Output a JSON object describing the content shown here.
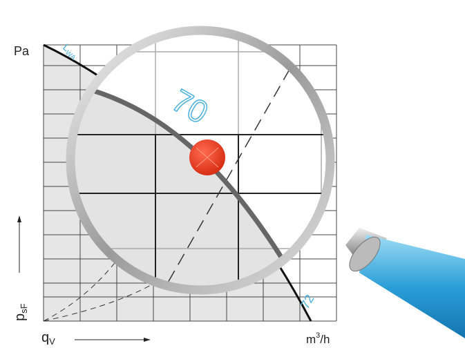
{
  "labels": {
    "y_unit": "Pa",
    "y_axis_base": "p",
    "y_axis_sub": "sF",
    "x_axis_base": "q",
    "x_axis_sub": "V",
    "x_unit_base": "m",
    "x_unit_sup": "3",
    "x_unit_tail": "/h",
    "curve_name_base": "L",
    "curve_name_sub": "WA",
    "level_inner": "70",
    "level_outer": "72"
  }
}
